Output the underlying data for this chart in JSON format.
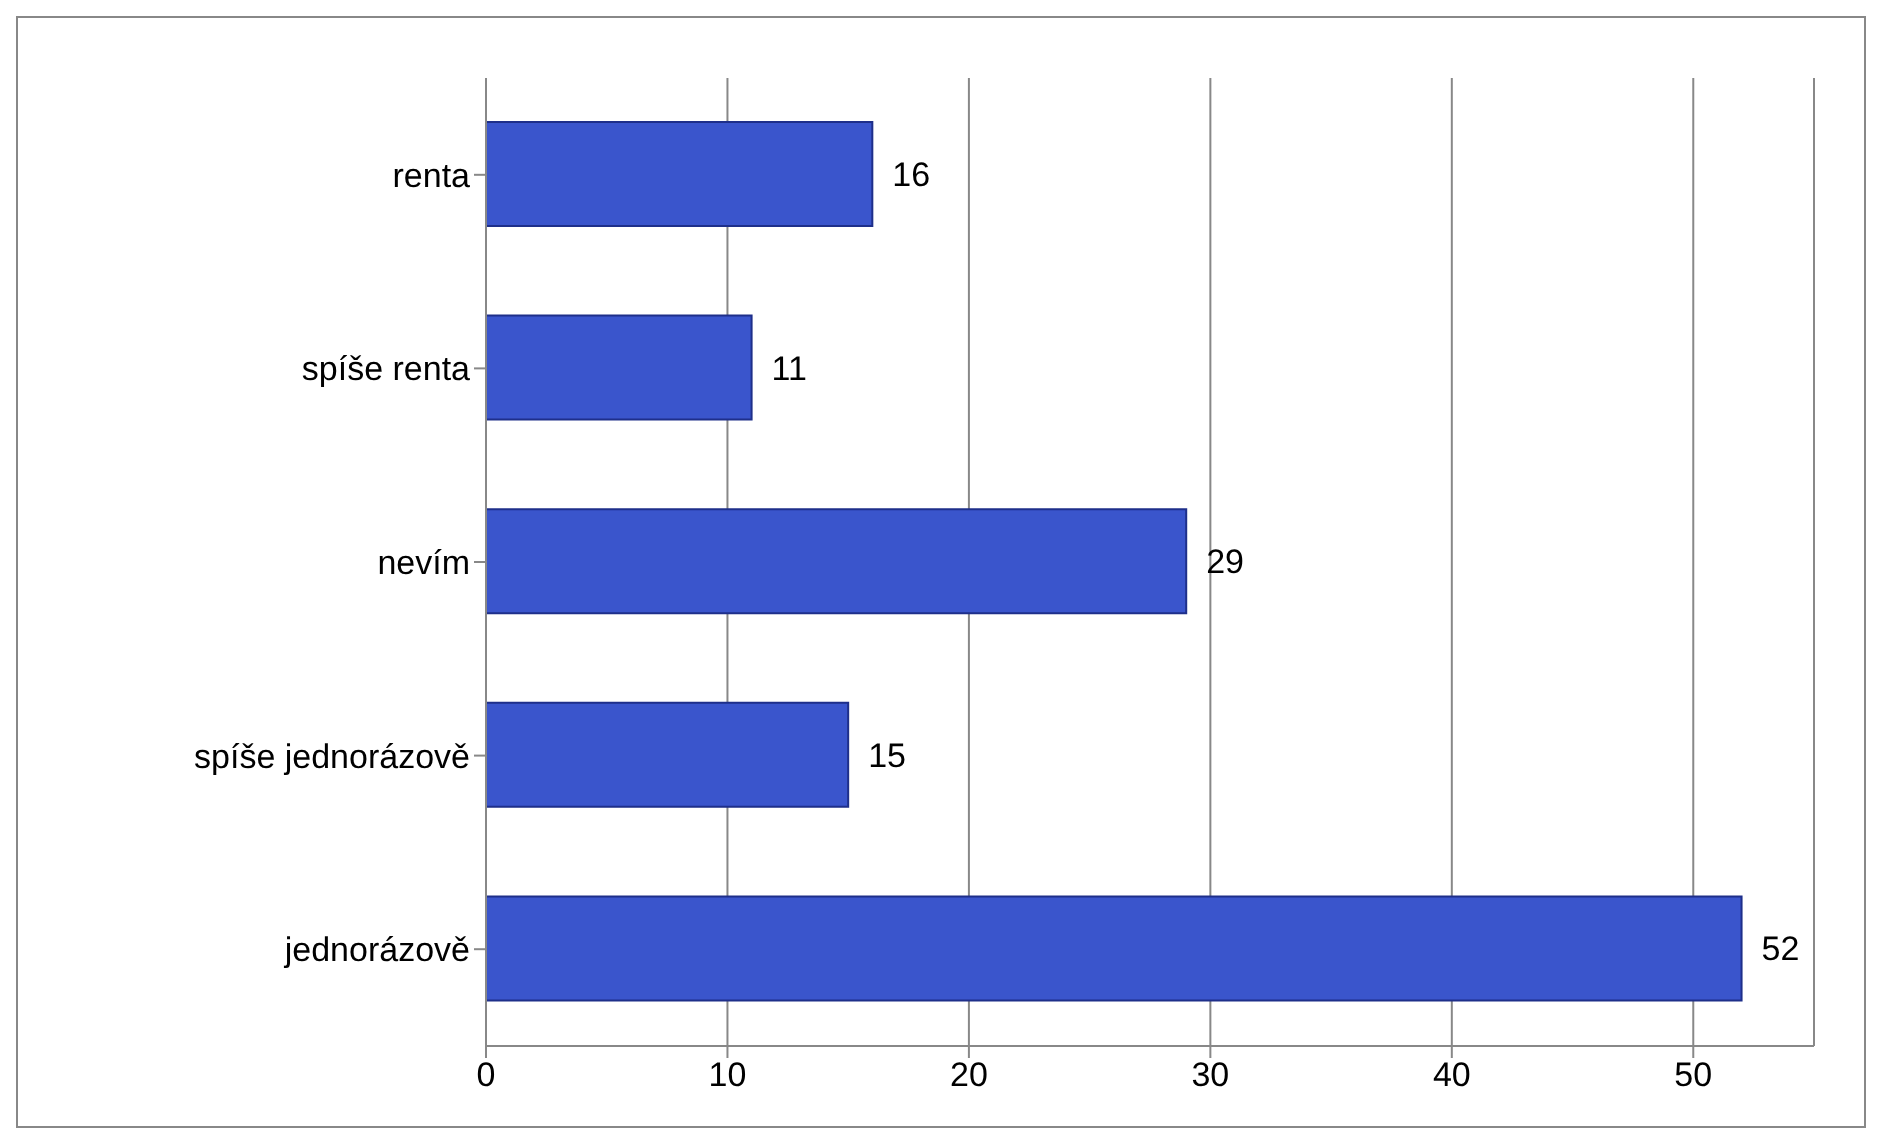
{
  "chart_data": {
    "type": "bar",
    "orientation": "horizontal",
    "categories": [
      "renta",
      "spíše renta",
      "nevím",
      "spíše jednorázově",
      "jednorázově"
    ],
    "values": [
      16,
      11,
      29,
      15,
      52
    ],
    "color": "#3a55cc",
    "xlim": [
      0,
      55
    ],
    "xticks": [
      0,
      10,
      20,
      30,
      40,
      50
    ],
    "grid": "x",
    "data_labels": true
  }
}
